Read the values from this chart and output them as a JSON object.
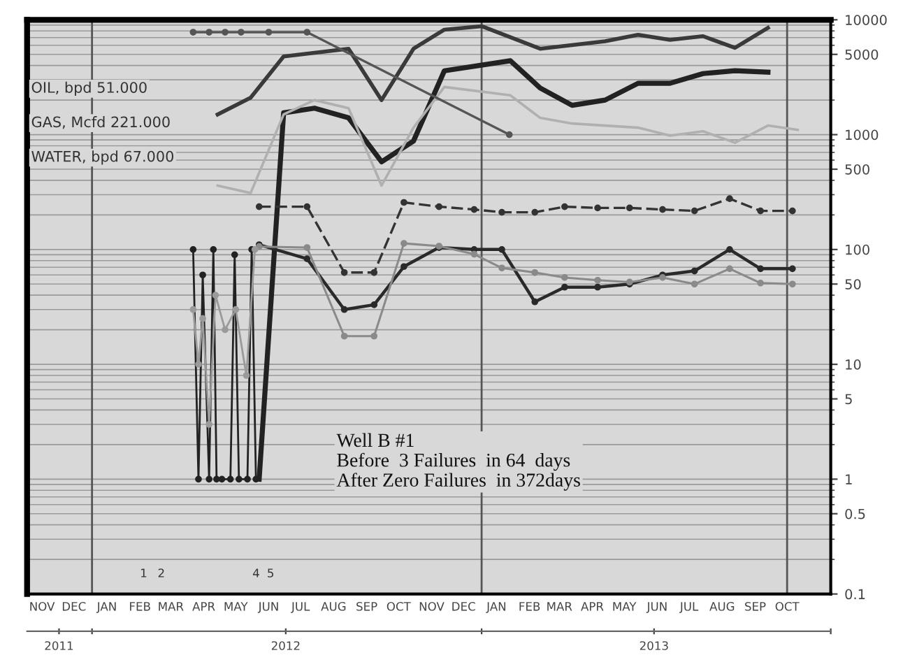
{
  "chart_data": {
    "type": "line",
    "annotations": [
      "OIL, bpd 51.000",
      "GAS, Mcfd 221.000",
      "WATER, bpd 67.000",
      "Well B #1\nBefore  3 Failures  in 64  days\nAfter Zero Failures  in 372days",
      "1",
      "2",
      "4",
      "5"
    ],
    "series": [
      {
        "color": "#3a3a3a",
        "x": [
          "2012-04-28",
          "2012-05-29",
          "2012-06-29",
          "2012-08-29",
          "2012-09-29",
          "2012-10-29",
          "2012-11-27",
          "2013-01-01",
          "2013-02-25",
          "2013-04-27",
          "2013-05-28",
          "2013-06-27",
          "2013-07-28",
          "2013-08-27",
          "2013-09-27"
        ],
        "values": [
          1500,
          2100,
          4800,
          5600,
          2000,
          5600,
          8200,
          8800,
          5600,
          6500,
          7400,
          6700,
          7200,
          5700,
          8500
        ]
      },
      {
        "color": "#222222",
        "x": [
          "2012-06-06",
          "2012-06-29",
          "2012-07-28",
          "2012-08-29",
          "2012-09-29",
          "2012-10-29",
          "2012-11-27",
          "2013-01-28",
          "2013-02-25",
          "2013-03-27",
          "2013-04-27",
          "2013-05-28",
          "2013-06-27",
          "2013-07-28",
          "2013-08-27",
          "2013-09-27"
        ],
        "values": [
          1,
          1550,
          1700,
          1400,
          580,
          880,
          3600,
          4400,
          2550,
          1800,
          2000,
          2800,
          2800,
          3400,
          3600,
          3500
        ]
      },
      {
        "color": "#b0b0b0",
        "x": [
          "2012-04-28",
          "2012-05-29",
          "2012-06-29",
          "2012-07-28",
          "2012-08-29",
          "2012-09-29",
          "2012-10-29",
          "2012-11-27",
          "2013-01-28",
          "2013-02-25",
          "2013-03-27",
          "2013-05-28",
          "2013-06-27",
          "2013-07-28",
          "2013-08-27",
          "2013-09-27",
          "2013-10-25"
        ],
        "values": [
          360,
          310,
          1500,
          2000,
          1700,
          360,
          1150,
          2600,
          2200,
          1400,
          1250,
          1150,
          980,
          1070,
          850,
          1200,
          1100
        ]
      },
      {
        "color": "#555555",
        "x": [
          "2012-04-05",
          "2012-04-20",
          "2012-05-05",
          "2012-05-20",
          "2012-06-15",
          "2012-07-21",
          "2013-01-27"
        ],
        "values": [
          7800,
          7800,
          7800,
          7800,
          7800,
          7800,
          1000
        ],
        "marker": "circle"
      },
      {
        "color": "#333333",
        "x": [
          "2012-06-06",
          "2012-07-21",
          "2012-08-25",
          "2012-09-22",
          "2012-10-20",
          "2012-11-22",
          "2012-12-25",
          "2013-01-20",
          "2013-02-20",
          "2013-03-20",
          "2013-04-20",
          "2013-05-20",
          "2013-06-20",
          "2013-07-20",
          "2013-08-22",
          "2013-09-20",
          "2013-10-20"
        ],
        "values": [
          236,
          236,
          63,
          63,
          257,
          236,
          223,
          211,
          211,
          236,
          230,
          230,
          223,
          217,
          277,
          217,
          217
        ],
        "marker": "circle",
        "line_style": "dashed"
      },
      {
        "color": "#2a2a2a",
        "x": [
          "2012-06-06",
          "2012-07-21",
          "2012-08-25",
          "2012-09-22",
          "2012-10-20",
          "2012-11-22",
          "2012-12-25",
          "2013-01-20",
          "2013-02-20",
          "2013-03-20",
          "2013-04-20",
          "2013-05-20",
          "2013-06-20",
          "2013-07-20",
          "2013-08-22",
          "2013-09-20",
          "2013-10-20"
        ],
        "values": [
          110,
          83,
          30,
          33,
          71,
          104,
          100,
          100,
          35,
          47,
          47,
          50,
          60,
          65,
          100,
          68,
          68
        ],
        "marker": "circle"
      },
      {
        "color": "#8a8a8a",
        "x": [
          "2012-06-06",
          "2012-07-21",
          "2012-08-25",
          "2012-09-22",
          "2012-10-20",
          "2012-11-22",
          "2012-12-25",
          "2013-01-20",
          "2013-02-20",
          "2013-03-20",
          "2013-04-20",
          "2013-05-20",
          "2013-06-20",
          "2013-07-20",
          "2013-08-22",
          "2013-09-20",
          "2013-10-20"
        ],
        "values": [
          106,
          104,
          17.6,
          17.6,
          113,
          107,
          91,
          69,
          63,
          57,
          54,
          52,
          57,
          50,
          68,
          51,
          50
        ],
        "marker": "circle"
      },
      {
        "color": "#222222",
        "x": [
          "2012-04-05",
          "2012-04-10",
          "2012-04-14",
          "2012-04-20",
          "2012-04-24",
          "2012-04-27",
          "2012-05-02",
          "2012-05-10",
          "2012-05-14",
          "2012-05-18",
          "2012-05-26",
          "2012-05-30",
          "2012-06-03"
        ],
        "values": [
          100,
          1,
          60,
          1,
          100,
          1,
          1,
          1,
          90,
          1,
          1,
          100,
          1
        ],
        "marker": "circle"
      },
      {
        "color": "#9a9a9a",
        "x": [
          "2012-04-05",
          "2012-04-10",
          "2012-04-14",
          "2012-04-20",
          "2012-04-26",
          "2012-05-05",
          "2012-05-15",
          "2012-05-25",
          "2012-06-02"
        ],
        "values": [
          30,
          10,
          25,
          3,
          40,
          20,
          30,
          8,
          100
        ],
        "marker": "circle"
      }
    ],
    "xlim": [
      "2011-11-01",
      "2013-11-25"
    ],
    "xticks": [
      {
        "value": "2011-11-15",
        "label": "NOV"
      },
      {
        "value": "2011-12-15",
        "label": "DEC"
      },
      {
        "value": "2012-01-15",
        "label": "JAN"
      },
      {
        "value": "2012-02-15",
        "label": "FEB"
      },
      {
        "value": "2012-03-15",
        "label": "MAR"
      },
      {
        "value": "2012-04-15",
        "label": "APR"
      },
      {
        "value": "2012-05-15",
        "label": "MAY"
      },
      {
        "value": "2012-06-15",
        "label": "JUN"
      },
      {
        "value": "2012-07-15",
        "label": "JUL"
      },
      {
        "value": "2012-08-15",
        "label": "AUG"
      },
      {
        "value": "2012-09-15",
        "label": "SEP"
      },
      {
        "value": "2012-10-15",
        "label": "OCT"
      },
      {
        "value": "2012-11-15",
        "label": "NOV"
      },
      {
        "value": "2012-12-15",
        "label": "DEC"
      },
      {
        "value": "2013-01-15",
        "label": "JAN"
      },
      {
        "value": "2013-02-15",
        "label": "FEB"
      },
      {
        "value": "2013-03-15",
        "label": "MAR"
      },
      {
        "value": "2013-04-15",
        "label": "APR"
      },
      {
        "value": "2013-05-15",
        "label": "MAY"
      },
      {
        "value": "2013-06-15",
        "label": "JUN"
      },
      {
        "value": "2013-07-15",
        "label": "JUL"
      },
      {
        "value": "2013-08-15",
        "label": "AUG"
      },
      {
        "value": "2013-09-15",
        "label": "SEP"
      },
      {
        "value": "2013-10-15",
        "label": "OCT"
      }
    ],
    "x2lim": [
      "2011-11-01",
      "2013-11-25"
    ],
    "x2ticks": [
      {
        "value": "2011-12-01",
        "label": "2011"
      },
      {
        "value": "2012-01-01",
        "label": null
      },
      {
        "value": "2012-07-01",
        "label": "2012"
      },
      {
        "value": "2013-01-01",
        "label": null
      },
      {
        "value": "2013-06-12",
        "label": "2013"
      },
      {
        "value": "2013-11-25",
        "label": null
      }
    ],
    "ylim": [
      0.1,
      10000
    ],
    "yticks": [
      0.1,
      0.5,
      1,
      5,
      10,
      50,
      100,
      500,
      1000,
      5000,
      10000
    ],
    "log": "y",
    "grid": "y",
    "ref_lines": [
      {
        "axis": "x",
        "value": "2012-01-01",
        "color": "#555555"
      },
      {
        "axis": "x",
        "value": "2013-01-01",
        "color": "#555555"
      },
      {
        "axis": "x",
        "value": "2013-10-15",
        "color": "#555555"
      }
    ]
  }
}
